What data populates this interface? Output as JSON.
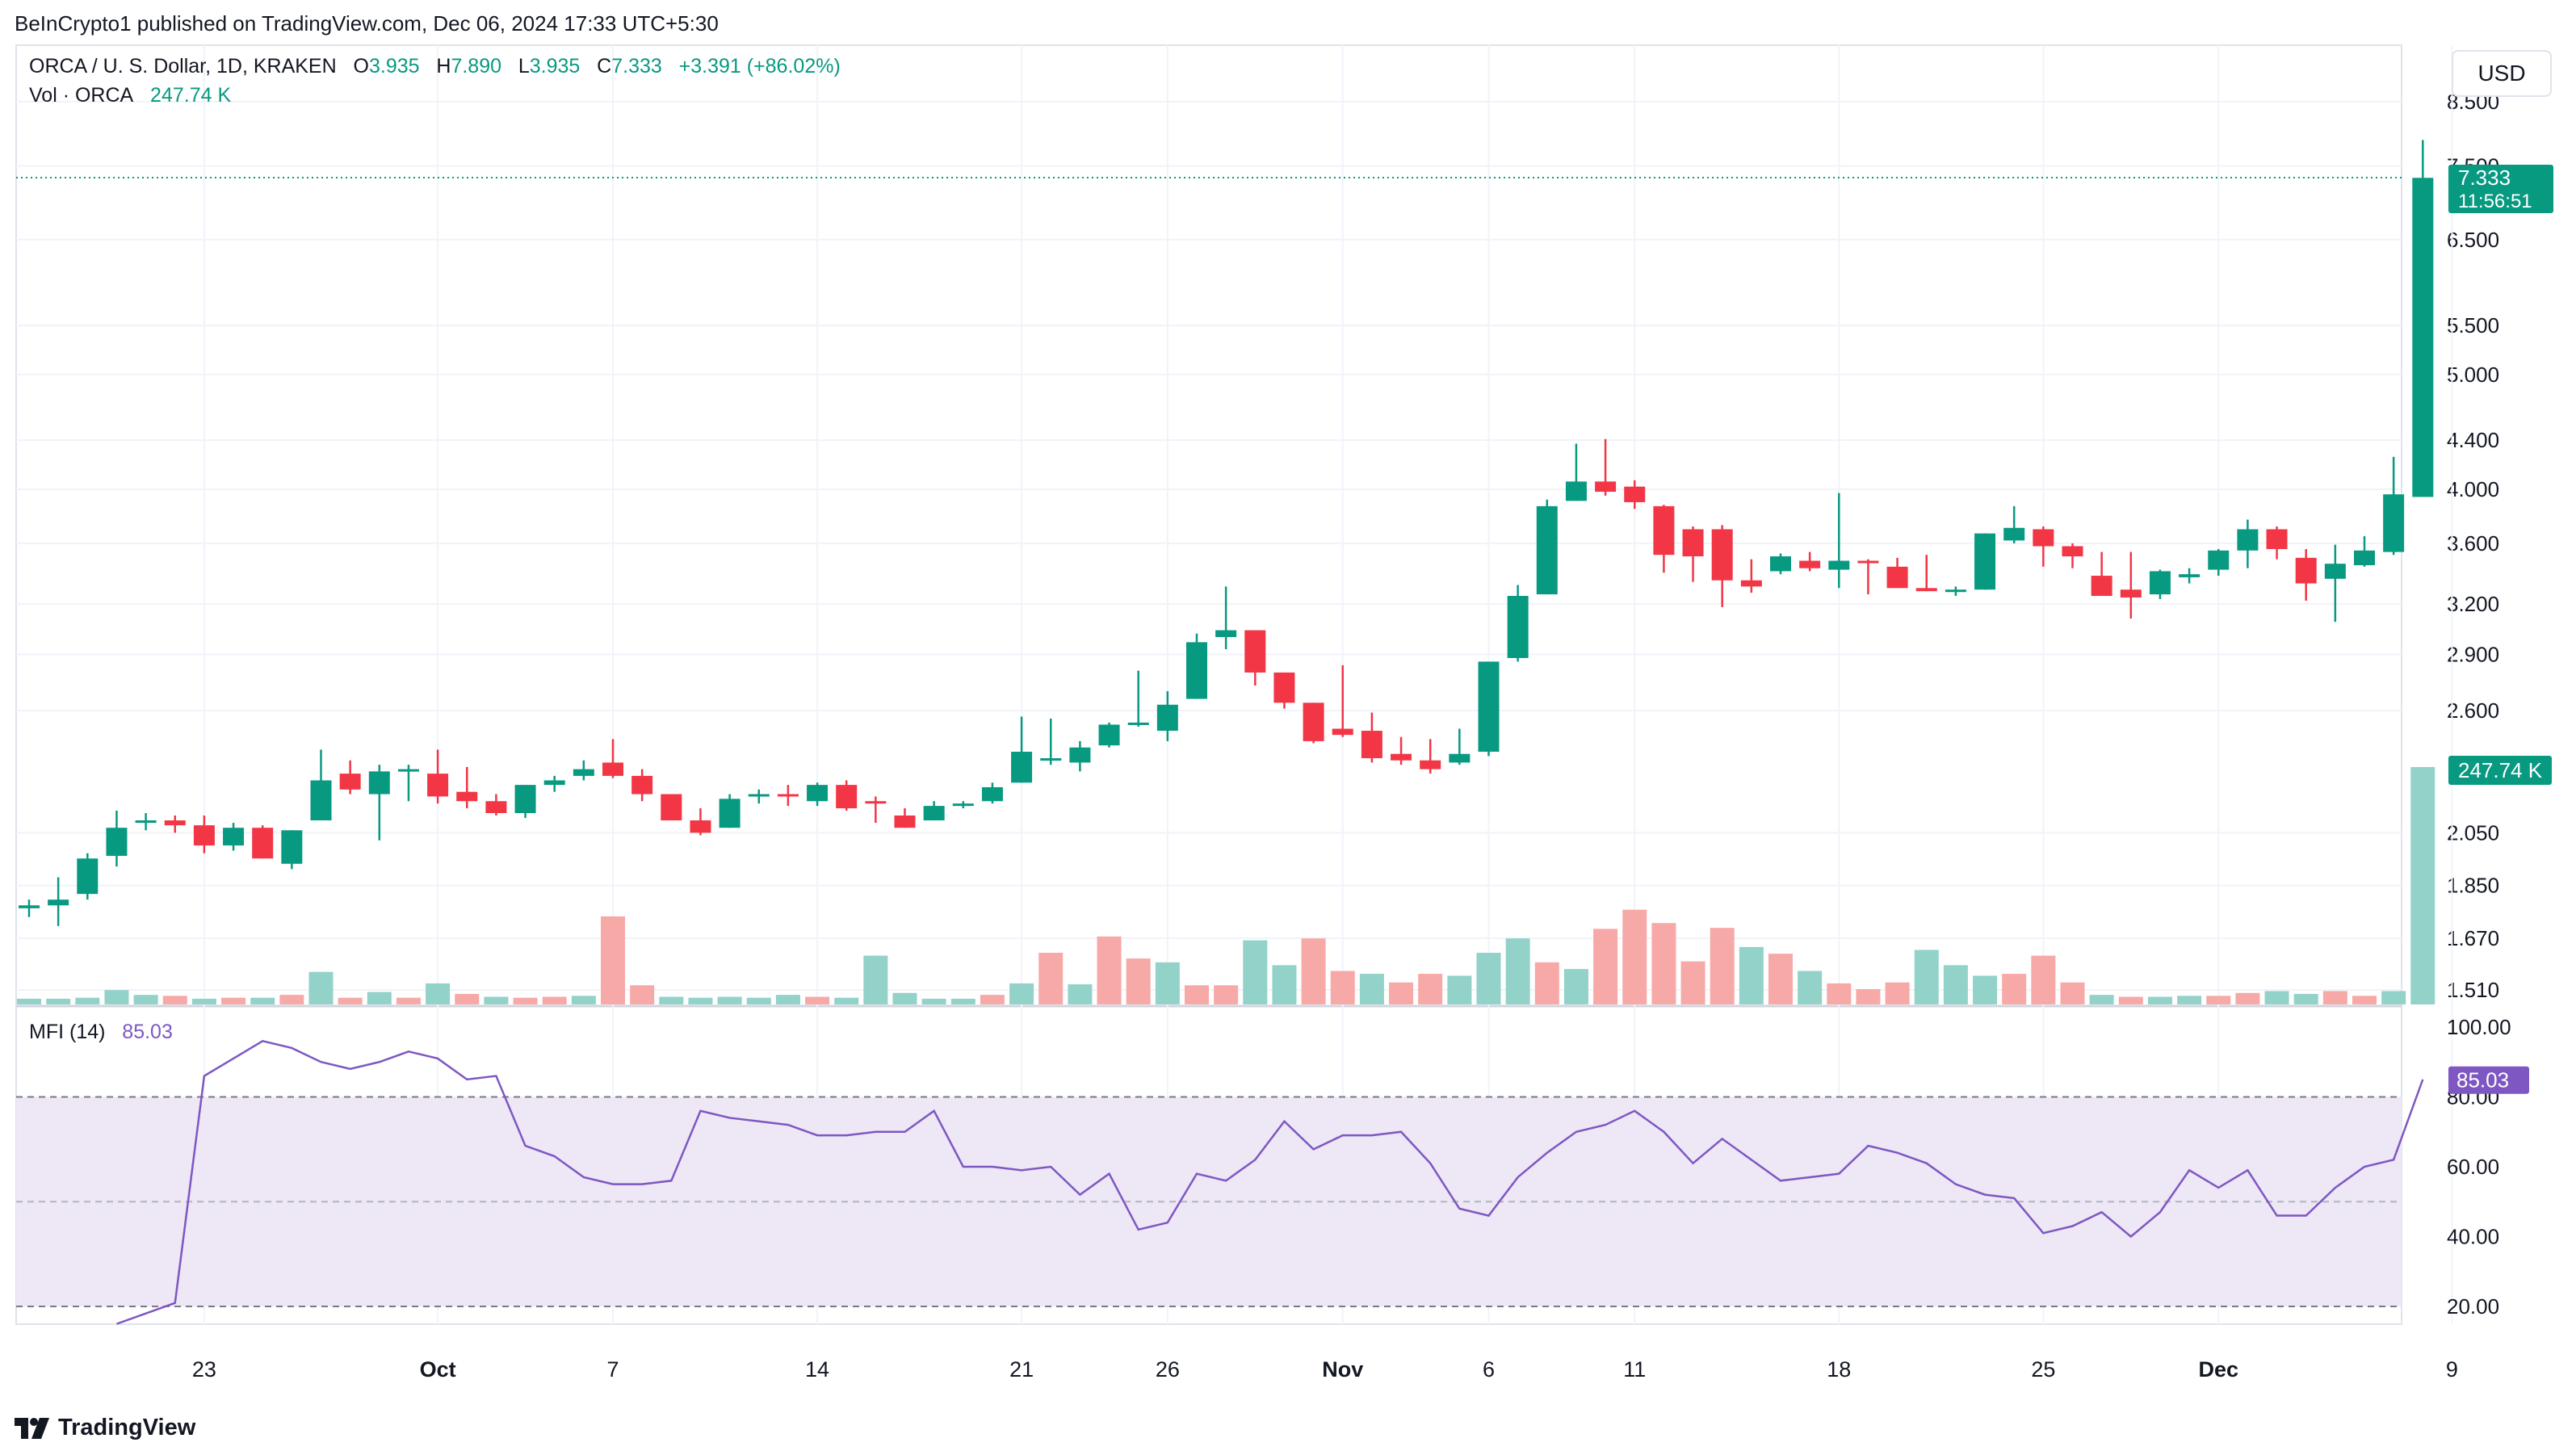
{
  "header": {
    "published": "BeInCrypto1 published on TradingView.com, Dec 06, 2024 17:33 UTC+5:30"
  },
  "legend": {
    "symbol": "ORCA / U. S. Dollar, 1D, KRAKEN",
    "o_label": "O",
    "o_value": "3.935",
    "h_label": "H",
    "h_value": "7.890",
    "l_label": "L",
    "l_value": "3.935",
    "c_label": "C",
    "c_value": "7.333",
    "change": "+3.391 (+86.02%)",
    "vol_label": "Vol · ORCA",
    "vol_value": "247.74 K",
    "mfi_label": "MFI (14)",
    "mfi_value": "85.03"
  },
  "currency_button": "USD",
  "brand": "TradingView",
  "colors": {
    "up": "#089981",
    "down": "#f23645",
    "mfi": "#7e57c2",
    "mfi_band": "#ede7f6"
  },
  "chart_data": {
    "type": "candlestick",
    "price_axis": {
      "scale": "log",
      "ticks": [
        "8.500",
        "7.500",
        "6.500",
        "5.500",
        "5.000",
        "4.400",
        "4.000",
        "3.600",
        "3.200",
        "2.900",
        "2.600",
        "2.050",
        "1.850",
        "1.670",
        "1.510"
      ]
    },
    "mfi_axis": {
      "ticks": [
        "100.00",
        "80.00",
        "60.00",
        "40.00",
        "20.00"
      ],
      "levels": [
        80,
        50,
        20
      ]
    },
    "x_ticks": [
      {
        "label": "23",
        "i": 6
      },
      {
        "label": "Oct",
        "i": 14
      },
      {
        "label": "7",
        "i": 20
      },
      {
        "label": "14",
        "i": 27
      },
      {
        "label": "21",
        "i": 34
      },
      {
        "label": "26",
        "i": 39
      },
      {
        "label": "Nov",
        "i": 45
      },
      {
        "label": "6",
        "i": 50
      },
      {
        "label": "11",
        "i": 55
      },
      {
        "label": "18",
        "i": 62
      },
      {
        "label": "25",
        "i": 69
      },
      {
        "label": "Dec",
        "i": 75
      },
      {
        "label": "9",
        "i": 83
      }
    ],
    "last_price": "7.333",
    "countdown": "11:56:51",
    "last_volume": "247.74 K",
    "mfi_last": "85.03",
    "candles": [
      [
        1.77,
        1.8,
        1.74,
        1.78
      ],
      [
        1.78,
        1.88,
        1.71,
        1.8
      ],
      [
        1.82,
        1.97,
        1.8,
        1.95
      ],
      [
        1.96,
        2.14,
        1.92,
        2.07
      ],
      [
        2.09,
        2.13,
        2.06,
        2.1
      ],
      [
        2.1,
        2.12,
        2.05,
        2.08
      ],
      [
        2.08,
        2.12,
        1.97,
        2.0
      ],
      [
        2.0,
        2.09,
        1.98,
        2.07
      ],
      [
        2.07,
        2.08,
        1.95,
        1.95
      ],
      [
        1.93,
        2.06,
        1.91,
        2.06
      ],
      [
        2.1,
        2.41,
        2.1,
        2.27
      ],
      [
        2.3,
        2.36,
        2.21,
        2.23
      ],
      [
        2.21,
        2.34,
        2.02,
        2.31
      ],
      [
        2.31,
        2.34,
        2.18,
        2.32
      ],
      [
        2.3,
        2.41,
        2.17,
        2.2
      ],
      [
        2.22,
        2.33,
        2.15,
        2.18
      ],
      [
        2.18,
        2.21,
        2.12,
        2.13
      ],
      [
        2.13,
        2.25,
        2.11,
        2.25
      ],
      [
        2.25,
        2.29,
        2.22,
        2.27
      ],
      [
        2.29,
        2.36,
        2.27,
        2.32
      ],
      [
        2.35,
        2.46,
        2.28,
        2.29
      ],
      [
        2.29,
        2.32,
        2.18,
        2.21
      ],
      [
        2.21,
        2.21,
        2.1,
        2.1
      ],
      [
        2.1,
        2.15,
        2.04,
        2.05
      ],
      [
        2.07,
        2.21,
        2.07,
        2.19
      ],
      [
        2.2,
        2.23,
        2.17,
        2.21
      ],
      [
        2.21,
        2.25,
        2.16,
        2.2
      ],
      [
        2.18,
        2.26,
        2.16,
        2.25
      ],
      [
        2.25,
        2.27,
        2.14,
        2.15
      ],
      [
        2.18,
        2.2,
        2.09,
        2.17
      ],
      [
        2.12,
        2.15,
        2.07,
        2.07
      ],
      [
        2.1,
        2.18,
        2.1,
        2.16
      ],
      [
        2.17,
        2.18,
        2.15,
        2.17
      ],
      [
        2.18,
        2.26,
        2.17,
        2.24
      ],
      [
        2.26,
        2.57,
        2.26,
        2.4
      ],
      [
        2.36,
        2.56,
        2.34,
        2.37
      ],
      [
        2.35,
        2.45,
        2.31,
        2.42
      ],
      [
        2.43,
        2.54,
        2.42,
        2.53
      ],
      [
        2.53,
        2.81,
        2.52,
        2.54
      ],
      [
        2.5,
        2.7,
        2.45,
        2.63
      ],
      [
        2.66,
        3.02,
        2.66,
        2.97
      ],
      [
        3.0,
        3.31,
        2.93,
        3.04
      ],
      [
        3.04,
        3.04,
        2.73,
        2.8
      ],
      [
        2.8,
        2.8,
        2.61,
        2.64
      ],
      [
        2.64,
        2.64,
        2.44,
        2.45
      ],
      [
        2.51,
        2.84,
        2.47,
        2.48
      ],
      [
        2.5,
        2.59,
        2.35,
        2.37
      ],
      [
        2.39,
        2.47,
        2.34,
        2.36
      ],
      [
        2.36,
        2.46,
        2.3,
        2.32
      ],
      [
        2.35,
        2.51,
        2.34,
        2.39
      ],
      [
        2.4,
        2.85,
        2.38,
        2.86
      ],
      [
        2.88,
        3.32,
        2.86,
        3.25
      ],
      [
        3.26,
        3.92,
        3.26,
        3.87
      ],
      [
        3.91,
        4.37,
        3.91,
        4.06
      ],
      [
        4.06,
        4.41,
        3.95,
        3.98
      ],
      [
        4.02,
        4.07,
        3.85,
        3.9
      ],
      [
        3.87,
        3.88,
        3.4,
        3.52
      ],
      [
        3.7,
        3.72,
        3.34,
        3.51
      ],
      [
        3.7,
        3.73,
        3.18,
        3.35
      ],
      [
        3.35,
        3.49,
        3.27,
        3.31
      ],
      [
        3.41,
        3.53,
        3.39,
        3.51
      ],
      [
        3.48,
        3.54,
        3.41,
        3.43
      ],
      [
        3.42,
        3.97,
        3.3,
        3.48
      ],
      [
        3.48,
        3.49,
        3.26,
        3.47
      ],
      [
        3.44,
        3.5,
        3.34,
        3.3
      ],
      [
        3.3,
        3.52,
        3.28,
        3.28
      ],
      [
        3.28,
        3.31,
        3.25,
        3.29
      ],
      [
        3.29,
        3.67,
        3.29,
        3.67
      ],
      [
        3.62,
        3.87,
        3.6,
        3.71
      ],
      [
        3.7,
        3.72,
        3.44,
        3.58
      ],
      [
        3.58,
        3.6,
        3.43,
        3.51
      ],
      [
        3.38,
        3.54,
        3.28,
        3.25
      ],
      [
        3.29,
        3.54,
        3.11,
        3.24
      ],
      [
        3.26,
        3.42,
        3.23,
        3.41
      ],
      [
        3.37,
        3.43,
        3.33,
        3.39
      ],
      [
        3.42,
        3.56,
        3.38,
        3.55
      ],
      [
        3.55,
        3.77,
        3.43,
        3.7
      ],
      [
        3.7,
        3.72,
        3.49,
        3.56
      ],
      [
        3.5,
        3.56,
        3.22,
        3.33
      ],
      [
        3.36,
        3.59,
        3.09,
        3.46
      ],
      [
        3.45,
        3.65,
        3.44,
        3.55
      ],
      [
        3.54,
        4.26,
        3.52,
        3.96
      ],
      [
        3.94,
        7.89,
        3.94,
        7.33
      ]
    ],
    "volume_k": [
      6,
      6,
      7,
      15,
      10,
      9,
      6,
      7,
      7,
      10,
      34,
      7,
      13,
      7,
      22,
      11,
      8,
      7,
      8,
      9,
      92,
      20,
      8,
      7,
      8,
      7,
      10,
      8,
      7,
      51,
      12,
      6,
      6,
      10,
      22,
      54,
      21,
      71,
      48,
      44,
      20,
      20,
      67,
      41,
      69,
      35,
      32,
      23,
      32,
      30,
      54,
      69,
      44,
      37,
      79,
      99,
      85,
      45,
      80,
      60,
      53,
      35,
      22,
      16,
      23,
      57,
      41,
      30,
      32,
      51,
      23,
      10,
      8,
      8,
      9,
      9,
      12,
      14,
      11,
      14,
      9,
      14,
      248
    ],
    "vol_colors": "gggggrgrgrgrgrgrgrrgrrgggggrgggggrgrgrrgrrggrrgrrgggrgrrrrrgrgrrrgggrrrgrggrrggrrgg",
    "mfi": [
      15,
      18,
      21,
      86,
      91,
      96,
      94,
      90,
      88,
      90,
      93,
      91,
      85,
      86,
      66,
      63,
      57,
      55,
      55,
      56,
      76,
      74,
      73,
      72,
      69,
      69,
      70,
      70,
      76,
      60,
      60,
      59,
      60,
      52,
      58,
      42,
      44,
      58,
      56,
      62,
      73,
      65,
      69,
      69,
      70,
      61,
      48,
      46,
      57,
      64,
      70,
      72,
      76,
      70,
      61,
      68,
      62,
      56,
      57,
      58,
      66,
      64,
      61,
      55,
      52,
      51,
      41,
      43,
      47,
      40,
      47,
      59,
      54,
      59,
      46,
      46,
      54,
      60,
      62,
      85
    ]
  }
}
